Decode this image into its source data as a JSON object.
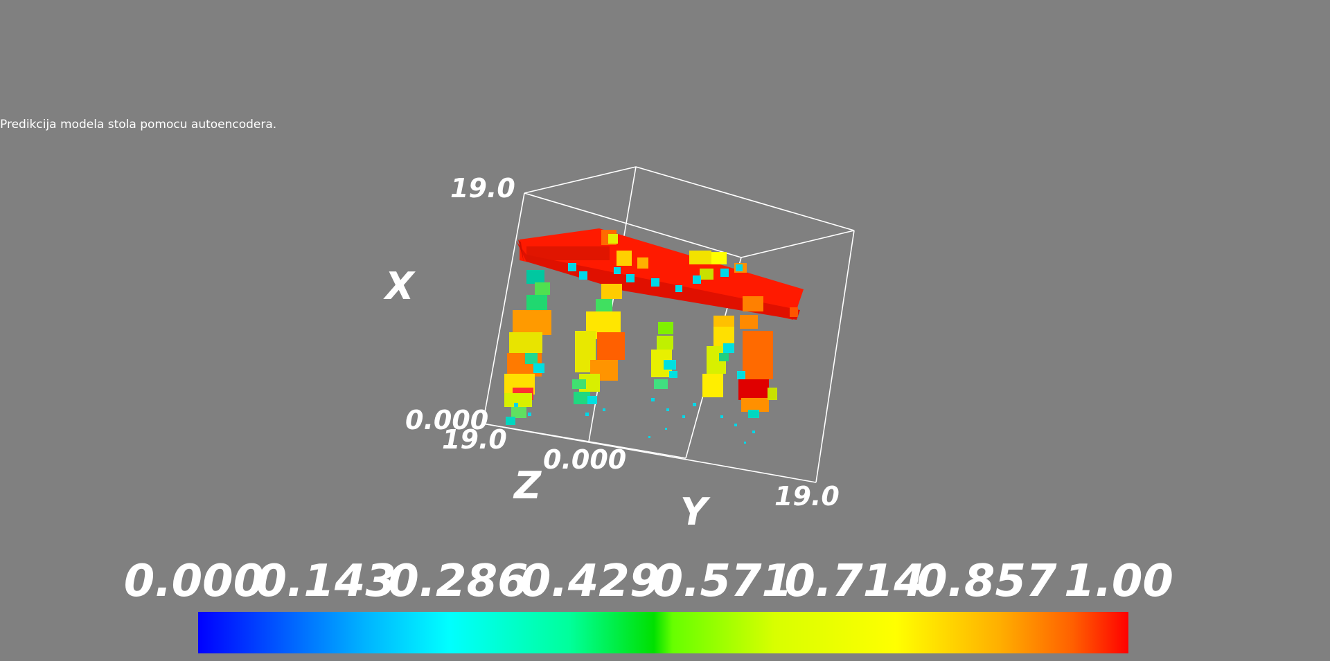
{
  "caption": "Predikcija modela stola pomocu autoencodera.",
  "axes": {
    "x_label": "X",
    "y_label": "Y",
    "z_label": "Z",
    "x_max": "19.0",
    "x_min": "0.000",
    "z_max": "19.0",
    "z_min": "0.000",
    "y_max": "19.0"
  },
  "colorbar": {
    "ticks": [
      "0.000",
      "0.143",
      "0.286",
      "0.429",
      "0.571",
      "0.714",
      "0.857",
      "1.00"
    ],
    "colors": [
      "#0000ff",
      "#00ffff",
      "#00e000",
      "#ffff00",
      "#ff0000"
    ]
  },
  "colors": {
    "background": "#808080",
    "box_lines": "#ffffff",
    "table_top": "#ff1a00"
  }
}
